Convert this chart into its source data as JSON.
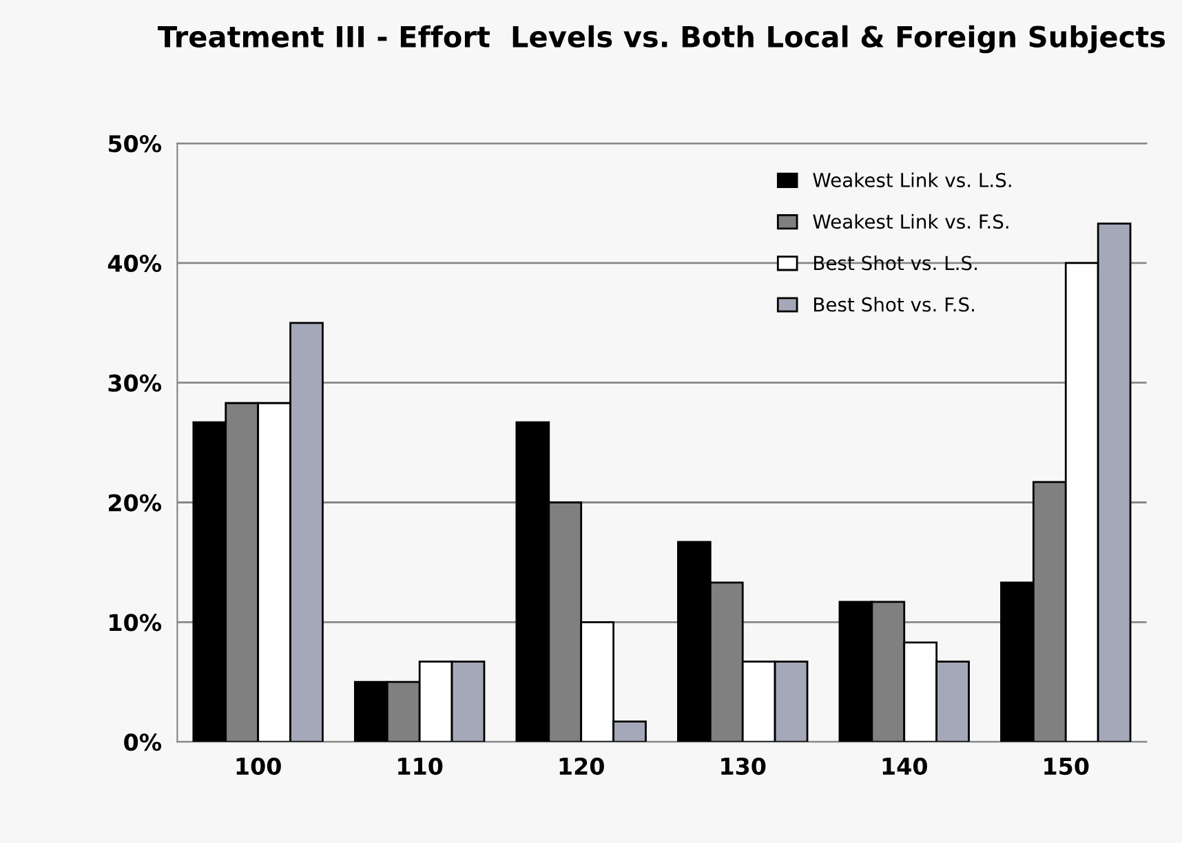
{
  "chart_data": {
    "type": "bar",
    "title": "Treatment III - Effort  Levels vs. Both Local & Foreign Subjects",
    "categories": [
      "100",
      "110",
      "120",
      "130",
      "140",
      "150"
    ],
    "series": [
      {
        "name": "Weakest Link vs. L.S.",
        "color": "#000000",
        "values": [
          26.7,
          5.0,
          26.7,
          16.7,
          11.7,
          13.3
        ]
      },
      {
        "name": "Weakest Link vs. F.S.",
        "color": "#808080",
        "values": [
          28.3,
          5.0,
          20.0,
          13.3,
          11.7,
          21.7
        ]
      },
      {
        "name": "Best Shot vs. L.S.",
        "color": "#ffffff",
        "values": [
          28.3,
          6.7,
          10.0,
          6.7,
          8.3,
          40.0
        ]
      },
      {
        "name": "Best Shot vs. F.S.",
        "color": "#a4a8b8",
        "values": [
          35.0,
          6.7,
          1.7,
          6.7,
          6.7,
          43.3
        ]
      }
    ],
    "ylim": [
      0,
      50
    ],
    "yticks": [
      {
        "value": 0,
        "label": "0%"
      },
      {
        "value": 10,
        "label": "10%"
      },
      {
        "value": 20,
        "label": "20%"
      },
      {
        "value": 30,
        "label": "30%"
      },
      {
        "value": 40,
        "label": "40%"
      },
      {
        "value": 50,
        "label": "50%"
      }
    ],
    "grid": "y",
    "legend": "top right"
  }
}
